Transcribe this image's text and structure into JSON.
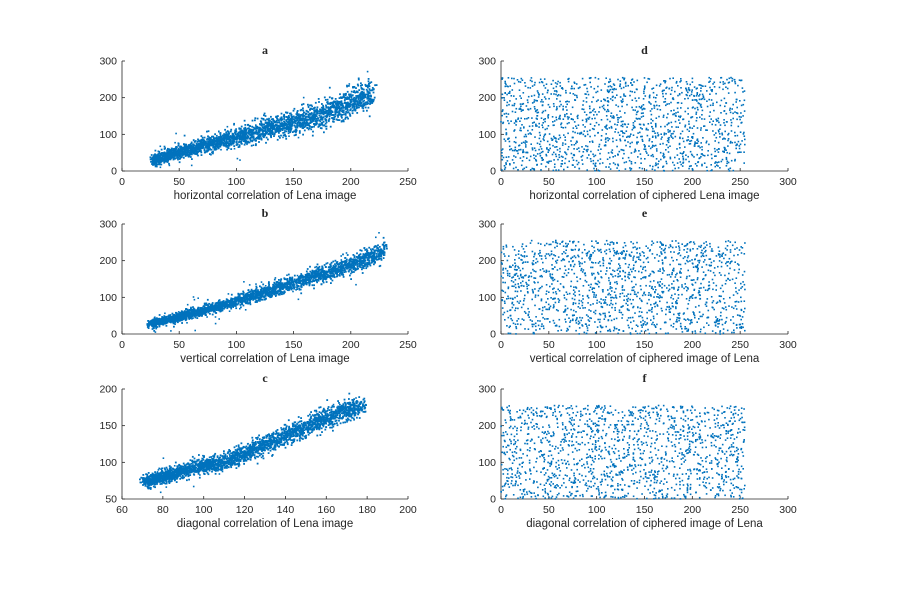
{
  "chart_data": [
    {
      "panel": "a",
      "type": "scatter",
      "title": "a",
      "xlabel": "horizontal correlation of Lena image",
      "ylabel": "",
      "xlim": [
        0,
        250
      ],
      "ylim": [
        0,
        300
      ],
      "xticks": [
        0,
        50,
        100,
        150,
        200,
        250
      ],
      "yticks": [
        0,
        100,
        200,
        300
      ],
      "marker_color": "#0072BD",
      "series": [
        {
          "name": "horizontal",
          "x": [
            27,
            30,
            35,
            40,
            45,
            50,
            55,
            60,
            65,
            70,
            75,
            80,
            85,
            90,
            95,
            100,
            110,
            120,
            130,
            140,
            150,
            160,
            170,
            180,
            190,
            200,
            205,
            210,
            215,
            220
          ],
          "y": [
            30,
            32,
            36,
            42,
            48,
            52,
            56,
            60,
            64,
            68,
            72,
            76,
            80,
            84,
            88,
            92,
            100,
            108,
            116,
            124,
            132,
            140,
            150,
            160,
            172,
            185,
            195,
            200,
            205,
            210
          ]
        }
      ]
    },
    {
      "panel": "b",
      "type": "scatter",
      "title": "b",
      "xlabel": "vertical correlation of Lena image",
      "ylabel": "",
      "xlim": [
        0,
        250
      ],
      "ylim": [
        0,
        300
      ],
      "xticks": [
        0,
        50,
        100,
        150,
        200,
        250
      ],
      "yticks": [
        0,
        100,
        200,
        300
      ],
      "marker_color": "#0072BD",
      "series": [
        {
          "name": "vertical",
          "x": [
            25,
            30,
            40,
            50,
            60,
            70,
            80,
            90,
            100,
            110,
            120,
            130,
            140,
            150,
            160,
            170,
            180,
            190,
            200,
            210,
            220,
            230
          ],
          "y": [
            28,
            30,
            38,
            46,
            55,
            63,
            72,
            80,
            90,
            100,
            110,
            118,
            128,
            138,
            148,
            158,
            168,
            178,
            190,
            200,
            212,
            230
          ]
        }
      ]
    },
    {
      "panel": "c",
      "type": "scatter",
      "title": "c",
      "xlabel": "diagonal correlation of Lena image",
      "ylabel": "",
      "xlim": [
        60,
        200
      ],
      "ylim": [
        50,
        200
      ],
      "xticks": [
        60,
        80,
        100,
        120,
        140,
        160,
        180,
        200
      ],
      "yticks": [
        50,
        100,
        150,
        200
      ],
      "marker_color": "#0072BD",
      "series": [
        {
          "name": "diagonal",
          "x": [
            72,
            75,
            80,
            85,
            90,
            95,
            100,
            105,
            110,
            115,
            120,
            125,
            130,
            135,
            140,
            145,
            150,
            155,
            160,
            165,
            170,
            175,
            178
          ],
          "y": [
            74,
            76,
            80,
            84,
            88,
            92,
            95,
            98,
            100,
            105,
            112,
            118,
            124,
            130,
            136,
            142,
            148,
            154,
            160,
            165,
            170,
            174,
            176
          ]
        }
      ]
    },
    {
      "panel": "d",
      "type": "scatter",
      "title": "d",
      "xlabel": "horizontal correlation of ciphered Lena image",
      "ylabel": "",
      "xlim": [
        0,
        300
      ],
      "ylim": [
        0,
        300
      ],
      "xticks": [
        0,
        50,
        100,
        150,
        200,
        250,
        300
      ],
      "yticks": [
        0,
        100,
        200,
        300
      ],
      "marker_color": "#0072BD",
      "distribution": "uniform",
      "x_range": [
        0,
        255
      ],
      "y_range": [
        0,
        255
      ]
    },
    {
      "panel": "e",
      "type": "scatter",
      "title": "e",
      "xlabel": "vertical correlation of ciphered image of Lena",
      "ylabel": "",
      "xlim": [
        0,
        300
      ],
      "ylim": [
        0,
        300
      ],
      "xticks": [
        0,
        50,
        100,
        150,
        200,
        250,
        300
      ],
      "yticks": [
        0,
        100,
        200,
        300
      ],
      "marker_color": "#0072BD",
      "distribution": "uniform",
      "x_range": [
        0,
        255
      ],
      "y_range": [
        0,
        255
      ]
    },
    {
      "panel": "f",
      "type": "scatter",
      "title": "f",
      "xlabel": "diagonal correlation of ciphered image of Lena",
      "ylabel": "",
      "xlim": [
        0,
        300
      ],
      "ylim": [
        0,
        300
      ],
      "xticks": [
        0,
        50,
        100,
        150,
        200,
        250,
        300
      ],
      "yticks": [
        0,
        100,
        200,
        300
      ],
      "marker_color": "#0072BD",
      "distribution": "uniform",
      "x_range": [
        0,
        255
      ],
      "y_range": [
        0,
        255
      ]
    }
  ]
}
